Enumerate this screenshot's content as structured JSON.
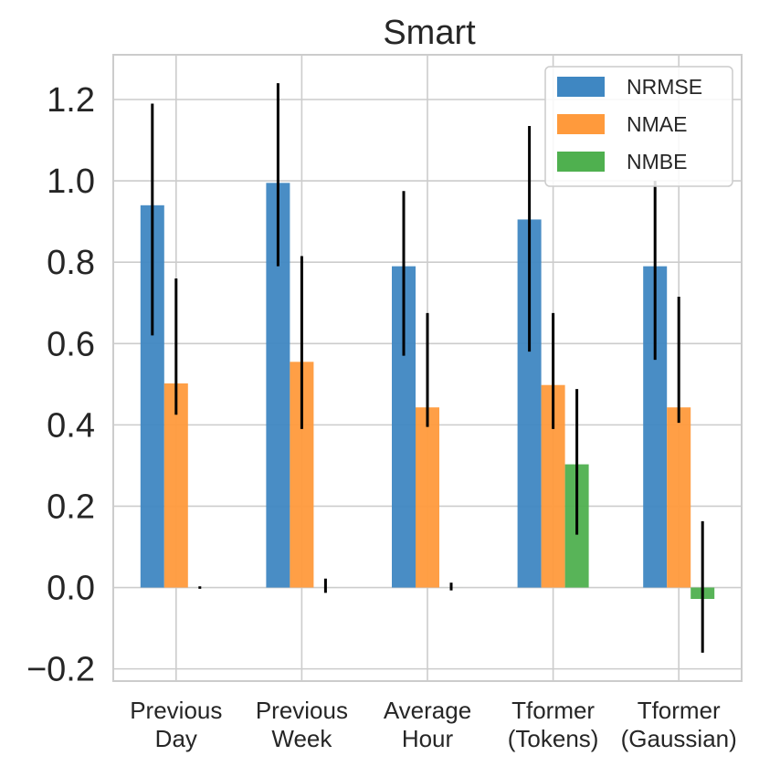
{
  "chart_data": {
    "type": "bar",
    "title": "Smart",
    "xlabel": "",
    "ylabel": "",
    "ylim": [
      -0.23,
      1.31
    ],
    "yticks": [
      -0.2,
      0.0,
      0.2,
      0.4,
      0.6,
      0.8,
      1.0,
      1.2
    ],
    "ytick_labels": [
      "−0.2",
      "0.0",
      "0.2",
      "0.4",
      "0.6",
      "0.8",
      "1.0",
      "1.2"
    ],
    "grid": true,
    "legend_position": "top-right",
    "categories": [
      [
        "Previous",
        "Day"
      ],
      [
        "Previous",
        "Week"
      ],
      [
        "Average",
        "Hour"
      ],
      [
        "Tformer",
        "(Tokens)"
      ],
      [
        "Tformer",
        "(Gaussian)"
      ]
    ],
    "series": [
      {
        "name": "NRMSE",
        "color": "#3f87c2",
        "values": [
          0.94,
          0.995,
          0.79,
          0.905,
          0.79
        ],
        "err_low": [
          0.62,
          0.79,
          0.57,
          0.58,
          0.56
        ],
        "err_high": [
          1.19,
          1.24,
          0.975,
          1.135,
          1.0
        ]
      },
      {
        "name": "NMAE",
        "color": "#ff9a3c",
        "values": [
          0.502,
          0.555,
          0.443,
          0.498,
          0.443
        ],
        "err_low": [
          0.425,
          0.39,
          0.395,
          0.39,
          0.405
        ],
        "err_high": [
          0.76,
          0.815,
          0.675,
          0.675,
          0.715
        ]
      },
      {
        "name": "NMBE",
        "color": "#4fb04f",
        "values": [
          0.0,
          0.0,
          0.0,
          0.303,
          -0.028
        ],
        "err_low": [
          -0.003,
          -0.013,
          -0.007,
          0.13,
          -0.16
        ],
        "err_high": [
          0.003,
          0.022,
          0.012,
          0.488,
          0.163
        ]
      }
    ]
  }
}
